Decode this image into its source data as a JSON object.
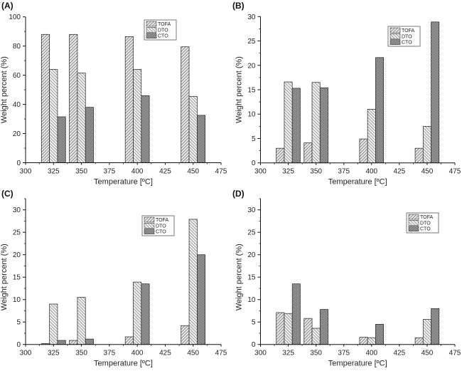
{
  "chart_data": [
    {
      "type": "bar",
      "panel_label": "(A)",
      "title": "",
      "xlabel": "Temperature [ºC]",
      "ylabel": "Weight percent (%)",
      "categories": [
        325,
        350,
        400,
        450
      ],
      "xlim": [
        300,
        475
      ],
      "ylim": [
        0,
        100
      ],
      "xticks": [
        "300",
        "325",
        "350",
        "375",
        "400",
        "425",
        "450",
        "475"
      ],
      "yticks": [
        "0",
        "20",
        "40",
        "60",
        "80",
        "100"
      ],
      "legend": [
        "TOFA",
        "DTO",
        "CTO"
      ],
      "legend_position": "top-right",
      "series": [
        {
          "name": "TOFA",
          "values": [
            88,
            88,
            86.5,
            79.5
          ]
        },
        {
          "name": "DTO",
          "values": [
            64,
            61.5,
            64,
            45.5
          ]
        },
        {
          "name": "CTO",
          "values": [
            31.5,
            38,
            46,
            32.5
          ]
        }
      ]
    },
    {
      "type": "bar",
      "panel_label": "(B)",
      "title": "",
      "xlabel": "Temperature [ºC]",
      "ylabel": "Weight percent (%)",
      "categories": [
        325,
        350,
        400,
        450
      ],
      "xlim": [
        300,
        475
      ],
      "ylim": [
        0,
        30
      ],
      "xticks": [
        "300",
        "325",
        "350",
        "375",
        "400",
        "425",
        "450",
        "475"
      ],
      "yticks": [
        "0",
        "5",
        "10",
        "15",
        "20",
        "25",
        "30"
      ],
      "legend": [
        "TOFA",
        "DTO",
        "CTO"
      ],
      "legend_position": "top-right",
      "series": [
        {
          "name": "TOFA",
          "values": [
            3.0,
            4.1,
            4.9,
            3.0
          ]
        },
        {
          "name": "DTO",
          "values": [
            16.6,
            16.5,
            11.0,
            7.5
          ]
        },
        {
          "name": "CTO",
          "values": [
            15.3,
            15.4,
            21.6,
            28.9
          ]
        }
      ]
    },
    {
      "type": "bar",
      "panel_label": "(C)",
      "title": "",
      "xlabel": "Temperature [ºC]",
      "ylabel": "Weight percent (%)",
      "categories": [
        325,
        350,
        400,
        450
      ],
      "xlim": [
        300,
        475
      ],
      "ylim": [
        0,
        32.5
      ],
      "xticks": [
        "300",
        "325",
        "350",
        "375",
        "400",
        "425",
        "450",
        "475"
      ],
      "yticks": [
        "0",
        "5",
        "10",
        "15",
        "20",
        "25",
        "30"
      ],
      "legend": [
        "TOFA",
        "DTO",
        "CTO"
      ],
      "legend_position": "top-right",
      "series": [
        {
          "name": "TOFA",
          "values": [
            0.2,
            0.9,
            1.7,
            4.2
          ]
        },
        {
          "name": "DTO",
          "values": [
            9.0,
            10.5,
            13.9,
            27.9
          ]
        },
        {
          "name": "CTO",
          "values": [
            0.9,
            1.2,
            13.5,
            20.0
          ]
        }
      ]
    },
    {
      "type": "bar",
      "panel_label": "(D)",
      "title": "",
      "xlabel": "Temperature [ºC]",
      "ylabel": "Weight percent (%)",
      "categories": [
        325,
        350,
        400,
        450
      ],
      "xlim": [
        300,
        475
      ],
      "ylim": [
        0,
        32.5
      ],
      "xticks": [
        "300",
        "325",
        "350",
        "375",
        "400",
        "425",
        "450",
        "475"
      ],
      "yticks": [
        "0",
        "5",
        "10",
        "15",
        "20",
        "25",
        "30"
      ],
      "legend": [
        "TOFA",
        "DTO",
        "CTO"
      ],
      "legend_position": "top-right",
      "series": [
        {
          "name": "TOFA",
          "values": [
            7.1,
            5.8,
            1.6,
            1.5
          ]
        },
        {
          "name": "DTO",
          "values": [
            6.9,
            3.6,
            1.5,
            5.6
          ]
        },
        {
          "name": "CTO",
          "values": [
            13.5,
            7.8,
            4.5,
            8.0
          ]
        }
      ]
    }
  ]
}
